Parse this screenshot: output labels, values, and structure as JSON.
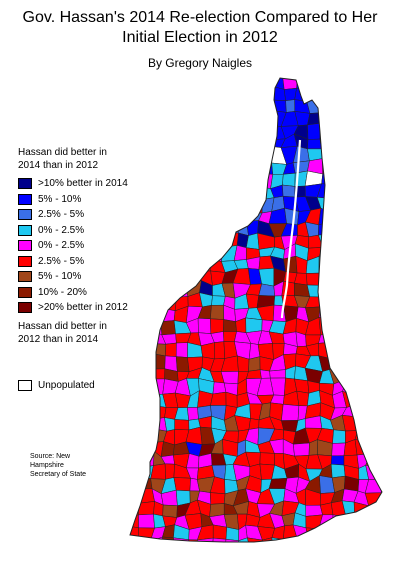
{
  "title_line1": "Gov. Hassan's 2014 Re-election Compared to Her",
  "title_line2": "Initial Election in 2012",
  "subtitle": "By Gregory Naigles",
  "legend": {
    "heading_line1": "Hassan did better in",
    "heading_line2": "2014 than in 2012",
    "items": [
      {
        "label": ">10% better in 2014",
        "color": "#00008b"
      },
      {
        "label": "5% - 10%",
        "color": "#0000ff"
      },
      {
        "label": "2.5% - 5%",
        "color": "#3a6fe8"
      },
      {
        "label": "0% - 2.5%",
        "color": "#1fc8f0"
      },
      {
        "label": "0% - 2.5%",
        "color": "#ff00ff"
      },
      {
        "label": "2.5% - 5%",
        "color": "#ff0000"
      },
      {
        "label": "5% - 10%",
        "color": "#a0461a"
      },
      {
        "label": "10% - 20%",
        "color": "#8b1a00"
      },
      {
        "label": ">20% better in 2012",
        "color": "#7a0000"
      }
    ],
    "footer_line1": "Hassan did better in",
    "footer_line2": "2012 than in 2014"
  },
  "unpopulated_label": "Unpopulated",
  "source": {
    "line1": "Source: New",
    "line2": "Hampshire",
    "line3": "Secretary of State"
  },
  "colors": {
    "border": "#222222",
    "background": "#ffffff"
  }
}
